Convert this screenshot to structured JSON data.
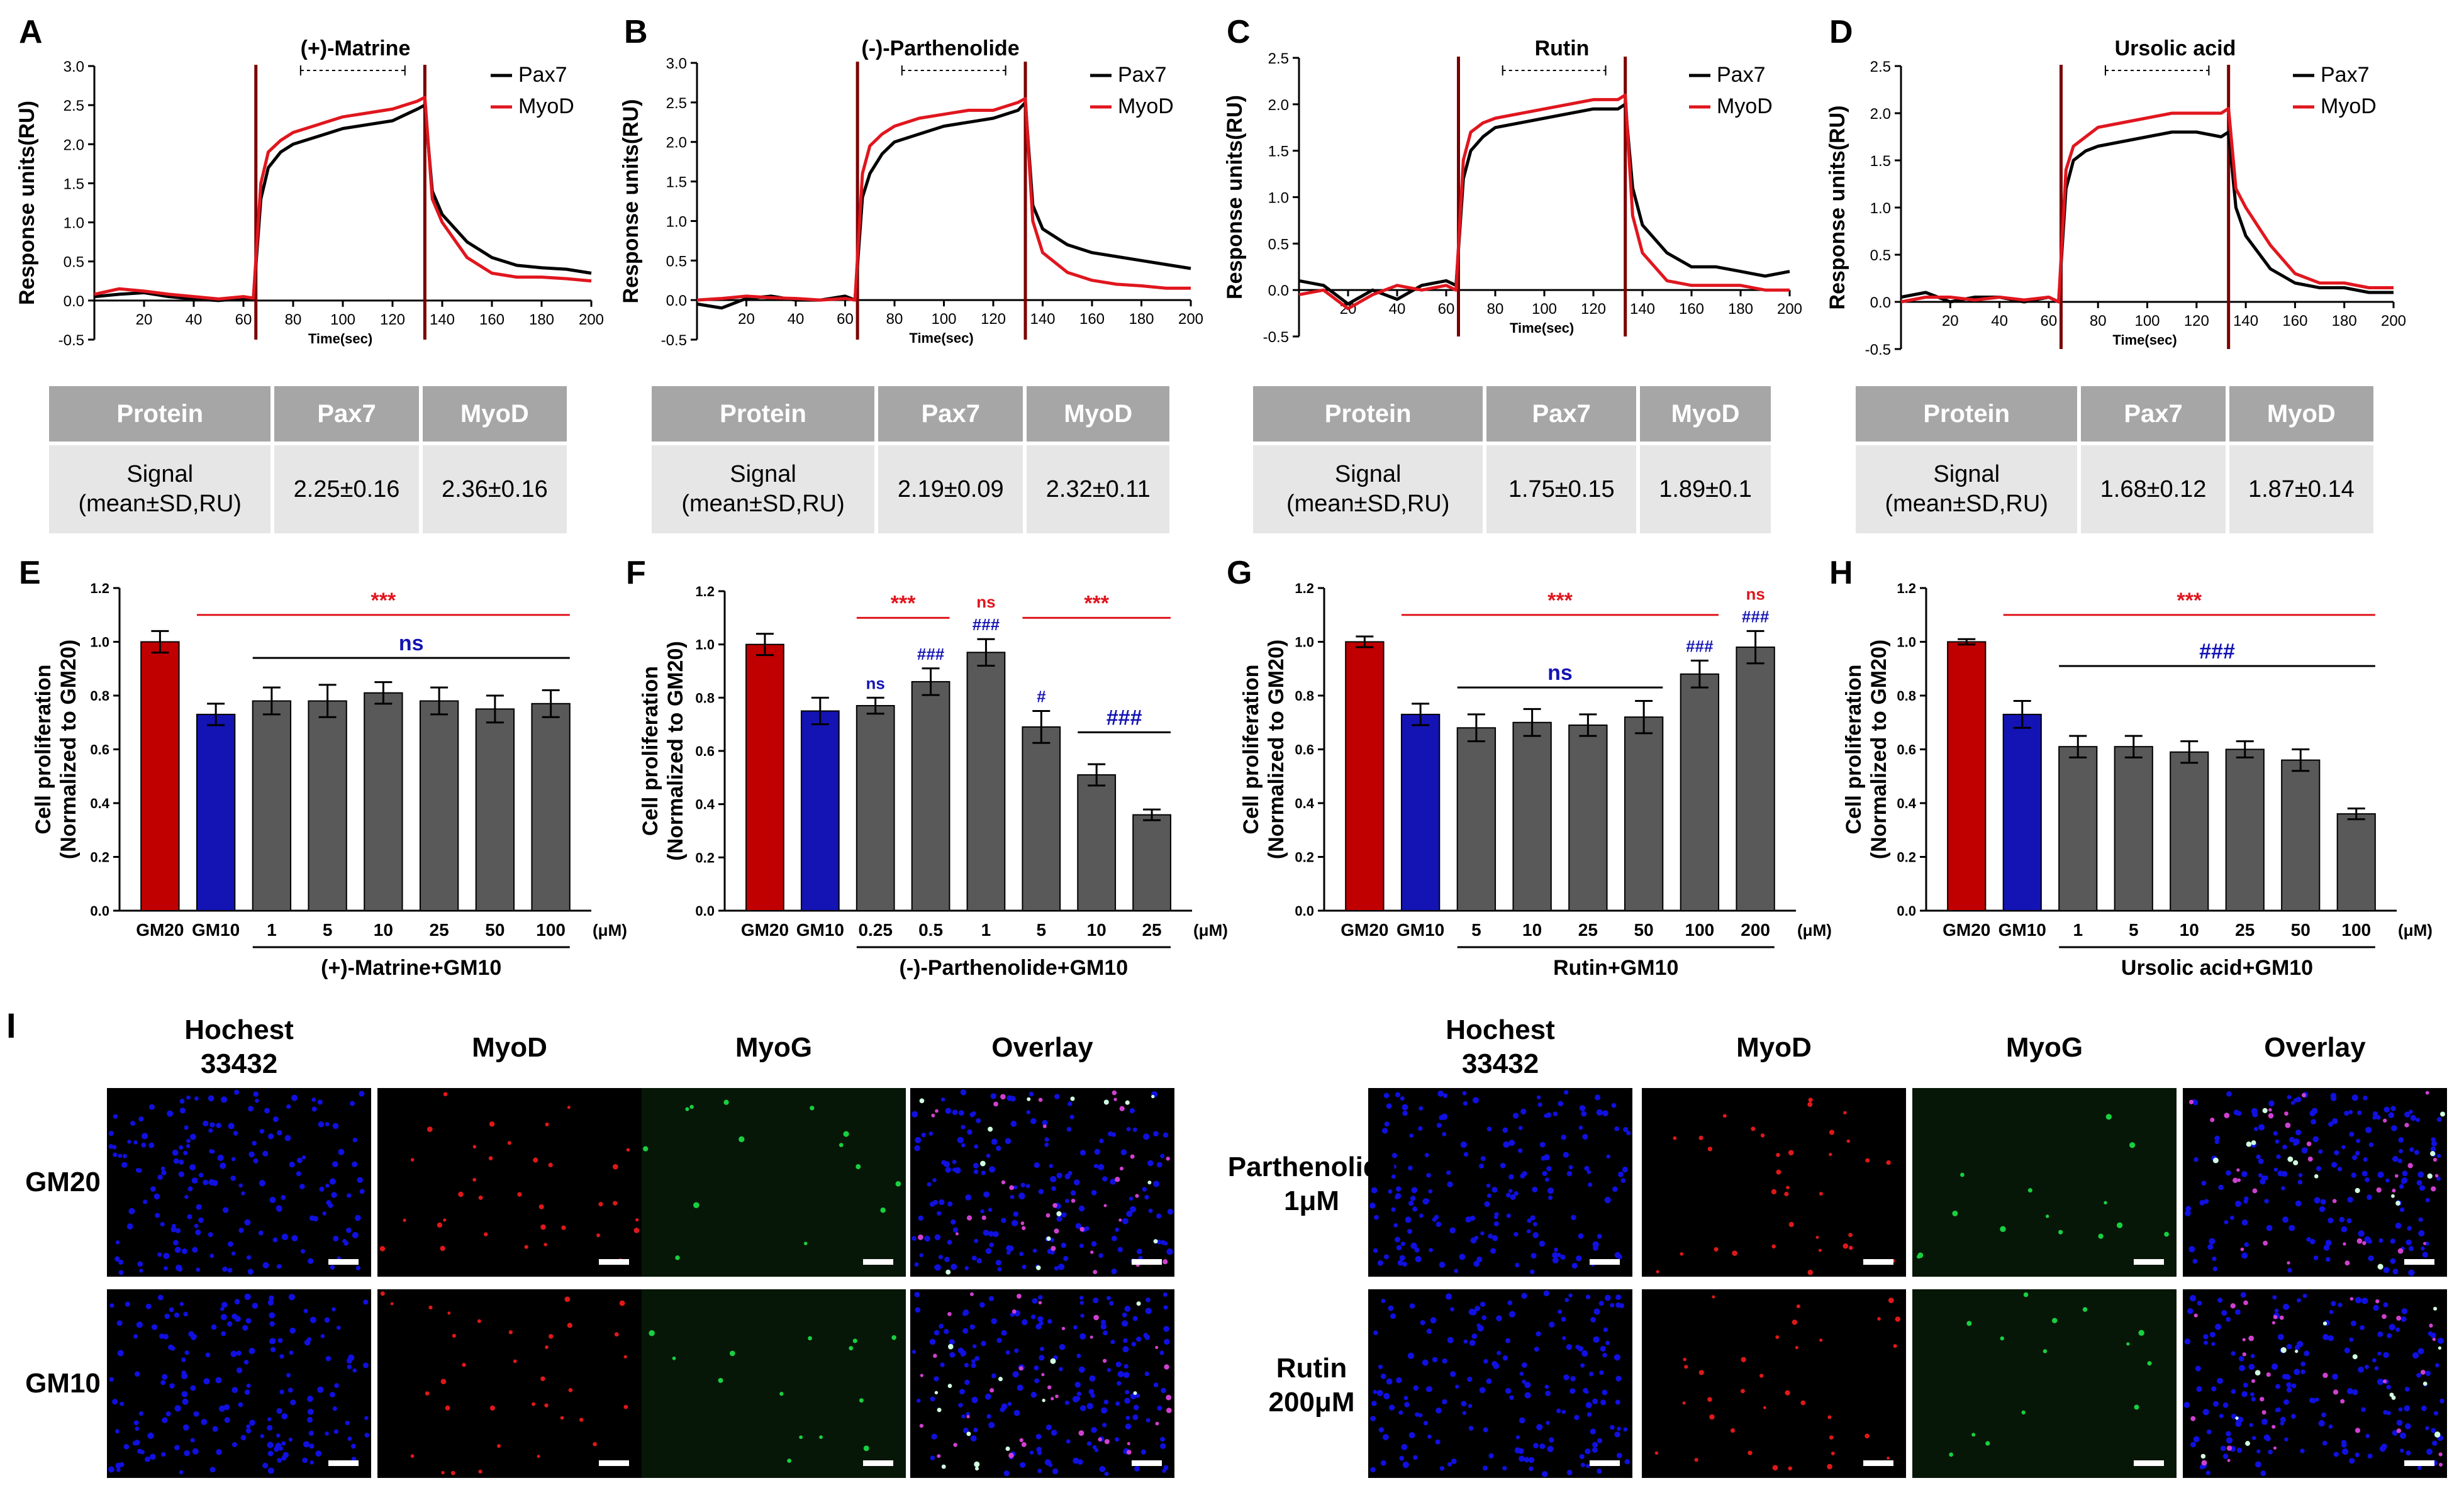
{
  "colors": {
    "pax7": "#000000",
    "myod": "#e0161e",
    "gm20": "#c00000",
    "gm10": "#1414b4",
    "treat": "#595959",
    "sig_red": "#e0161e",
    "sig_blue": "#1414b4",
    "inject": "#7a0000",
    "hoechst": "#1010e0",
    "myod_stain": "#e01818",
    "myog_stain": "#18d040"
  },
  "sensorgram_common": {
    "ylabel": "Response units(RU)",
    "xlabel": "Time(sec)",
    "legend": [
      "Pax7",
      "MyoD"
    ],
    "xticks": [
      20,
      40,
      60,
      80,
      100,
      120,
      140,
      160,
      180,
      200
    ]
  },
  "table_common": {
    "headers": [
      "Protein",
      "Pax7",
      "MyoD"
    ],
    "row_label_1": "Signal",
    "row_label_2": "(mean±SD,RU)"
  },
  "bars_common": {
    "ylabel1": "Cell proliferation",
    "ylabel2": "(Normalized to GM20)",
    "yticks": [
      "0.0",
      "0.2",
      "0.4",
      "0.6",
      "0.8",
      "1.0",
      "1.2"
    ],
    "unit": "(μM)"
  },
  "chart_data": [
    {
      "panel": "A",
      "type": "line",
      "title": "(+)-Matrine",
      "xlim": [
        0,
        200
      ],
      "ylim": [
        -0.5,
        3.0
      ],
      "yticks": [
        "-0.5",
        "0.0",
        "0.5",
        "1.0",
        "1.5",
        "2.0",
        "2.5",
        "3.0"
      ],
      "injection_start": 65,
      "injection_end": 133,
      "series": [
        {
          "name": "Pax7",
          "x": [
            0,
            10,
            20,
            30,
            40,
            50,
            60,
            64,
            67,
            70,
            75,
            80,
            90,
            100,
            110,
            120,
            130,
            133,
            136,
            140,
            150,
            160,
            170,
            180,
            190,
            200
          ],
          "y": [
            0.05,
            0.08,
            0.1,
            0.05,
            0.02,
            0.0,
            0.03,
            0.02,
            1.3,
            1.7,
            1.9,
            2.0,
            2.1,
            2.2,
            2.25,
            2.3,
            2.45,
            2.5,
            1.4,
            1.1,
            0.75,
            0.55,
            0.45,
            0.42,
            0.4,
            0.35
          ]
        },
        {
          "name": "MyoD",
          "x": [
            0,
            10,
            20,
            30,
            40,
            50,
            60,
            64,
            67,
            70,
            75,
            80,
            90,
            100,
            110,
            120,
            130,
            133,
            136,
            140,
            150,
            160,
            170,
            180,
            190,
            200
          ],
          "y": [
            0.08,
            0.15,
            0.12,
            0.08,
            0.05,
            0.02,
            0.05,
            0.03,
            1.5,
            1.9,
            2.05,
            2.15,
            2.25,
            2.35,
            2.4,
            2.45,
            2.55,
            2.6,
            1.3,
            1.0,
            0.55,
            0.35,
            0.3,
            0.3,
            0.28,
            0.25
          ]
        }
      ],
      "table": {
        "pax7": "2.25±0.16",
        "myod": "2.36±0.16"
      }
    },
    {
      "panel": "B",
      "type": "line",
      "title": "(-)-Parthenolide",
      "xlim": [
        0,
        200
      ],
      "ylim": [
        -0.5,
        3.0
      ],
      "yticks": [
        "-0.5",
        "0.0",
        "0.5",
        "1.0",
        "1.5",
        "2.0",
        "2.5",
        "3.0"
      ],
      "injection_start": 65,
      "injection_end": 133,
      "series": [
        {
          "name": "Pax7",
          "x": [
            0,
            10,
            20,
            30,
            40,
            50,
            60,
            64,
            67,
            70,
            75,
            80,
            90,
            100,
            110,
            120,
            130,
            133,
            136,
            140,
            150,
            160,
            170,
            180,
            190,
            200
          ],
          "y": [
            -0.05,
            -0.1,
            0.02,
            0.05,
            0.0,
            0.0,
            0.05,
            0.0,
            1.3,
            1.6,
            1.85,
            2.0,
            2.1,
            2.2,
            2.25,
            2.3,
            2.4,
            2.5,
            1.2,
            0.9,
            0.7,
            0.6,
            0.55,
            0.5,
            0.45,
            0.4
          ]
        },
        {
          "name": "MyoD",
          "x": [
            0,
            10,
            20,
            30,
            40,
            50,
            60,
            64,
            67,
            70,
            75,
            80,
            90,
            100,
            110,
            120,
            130,
            133,
            136,
            140,
            150,
            160,
            170,
            180,
            190,
            200
          ],
          "y": [
            0.0,
            0.02,
            0.05,
            0.03,
            0.02,
            0.0,
            0.02,
            0.0,
            1.6,
            1.95,
            2.1,
            2.2,
            2.3,
            2.35,
            2.4,
            2.4,
            2.5,
            2.55,
            1.0,
            0.6,
            0.35,
            0.25,
            0.2,
            0.18,
            0.15,
            0.15
          ]
        }
      ],
      "table": {
        "pax7": "2.19±0.09",
        "myod": "2.32±0.11"
      }
    },
    {
      "panel": "C",
      "type": "line",
      "title": "Rutin",
      "xlim": [
        0,
        200
      ],
      "ylim": [
        -0.5,
        2.5
      ],
      "yticks": [
        "-0.5",
        "0.0",
        "0.5",
        "1.0",
        "1.5",
        "2.0",
        "2.5"
      ],
      "injection_start": 65,
      "injection_end": 133,
      "series": [
        {
          "name": "Pax7",
          "x": [
            0,
            10,
            20,
            30,
            40,
            50,
            60,
            64,
            67,
            70,
            75,
            80,
            90,
            100,
            110,
            120,
            130,
            133,
            136,
            140,
            150,
            160,
            170,
            180,
            190,
            200
          ],
          "y": [
            0.1,
            0.05,
            -0.15,
            0.0,
            -0.1,
            0.05,
            0.1,
            0.05,
            1.2,
            1.5,
            1.65,
            1.75,
            1.8,
            1.85,
            1.9,
            1.95,
            1.95,
            2.0,
            1.1,
            0.7,
            0.4,
            0.25,
            0.25,
            0.2,
            0.15,
            0.2
          ]
        },
        {
          "name": "MyoD",
          "x": [
            0,
            10,
            20,
            30,
            40,
            50,
            60,
            64,
            67,
            70,
            75,
            80,
            90,
            100,
            110,
            120,
            130,
            133,
            136,
            140,
            150,
            160,
            170,
            180,
            190,
            200
          ],
          "y": [
            -0.05,
            0.0,
            -0.2,
            -0.05,
            0.05,
            0.0,
            0.05,
            0.0,
            1.4,
            1.7,
            1.8,
            1.85,
            1.9,
            1.95,
            2.0,
            2.05,
            2.05,
            2.1,
            0.8,
            0.4,
            0.1,
            0.05,
            0.05,
            0.05,
            0.0,
            0.0
          ]
        }
      ],
      "table": {
        "pax7": "1.75±0.15",
        "myod": "1.89±0.1"
      }
    },
    {
      "panel": "D",
      "type": "line",
      "title": "Ursolic acid",
      "xlim": [
        0,
        200
      ],
      "ylim": [
        -0.5,
        2.5
      ],
      "yticks": [
        "-0.5",
        "0.0",
        "0.5",
        "1.0",
        "1.5",
        "2.0",
        "2.5"
      ],
      "injection_start": 65,
      "injection_end": 133,
      "series": [
        {
          "name": "Pax7",
          "x": [
            0,
            10,
            20,
            30,
            40,
            50,
            60,
            64,
            67,
            70,
            75,
            80,
            90,
            100,
            110,
            120,
            130,
            133,
            136,
            140,
            150,
            160,
            170,
            180,
            190,
            200
          ],
          "y": [
            0.05,
            0.1,
            0.0,
            0.05,
            0.05,
            0.0,
            0.05,
            0.0,
            1.2,
            1.5,
            1.6,
            1.65,
            1.7,
            1.75,
            1.8,
            1.8,
            1.75,
            1.8,
            1.0,
            0.7,
            0.35,
            0.2,
            0.15,
            0.15,
            0.1,
            0.1
          ]
        },
        {
          "name": "MyoD",
          "x": [
            0,
            10,
            20,
            30,
            40,
            50,
            60,
            64,
            67,
            70,
            75,
            80,
            90,
            100,
            110,
            120,
            130,
            133,
            136,
            140,
            150,
            160,
            170,
            180,
            190,
            200
          ],
          "y": [
            0.0,
            0.05,
            0.05,
            0.02,
            0.05,
            0.02,
            0.05,
            0.0,
            1.4,
            1.65,
            1.75,
            1.85,
            1.9,
            1.95,
            2.0,
            2.0,
            2.0,
            2.05,
            1.2,
            1.0,
            0.6,
            0.3,
            0.2,
            0.2,
            0.15,
            0.15
          ]
        }
      ],
      "table": {
        "pax7": "1.68±0.12",
        "myod": "1.87±0.14"
      }
    },
    {
      "panel": "E",
      "type": "bar",
      "ylim": [
        0,
        1.2
      ],
      "categories": [
        "GM20",
        "GM10",
        "1",
        "5",
        "10",
        "25",
        "50",
        "100"
      ],
      "values": [
        1.0,
        0.73,
        0.78,
        0.78,
        0.81,
        0.78,
        0.75,
        0.77
      ],
      "errors": [
        0.04,
        0.04,
        0.05,
        0.06,
        0.04,
        0.05,
        0.05,
        0.05
      ],
      "group_label": "(+)-Matrine+GM10",
      "bar_marks": [
        "",
        "",
        "",
        "",
        "",
        "",
        "",
        ""
      ],
      "brackets": [
        {
          "text": "***",
          "color": "red",
          "from": 1,
          "to": 7,
          "y": 1.1
        },
        {
          "text": "ns",
          "color": "blue",
          "from": 2,
          "to": 7,
          "y": 0.94
        }
      ]
    },
    {
      "panel": "F",
      "type": "bar",
      "ylim": [
        0,
        1.2
      ],
      "categories": [
        "GM20",
        "GM10",
        "0.25",
        "0.5",
        "1",
        "5",
        "10",
        "25"
      ],
      "values": [
        1.0,
        0.75,
        0.77,
        0.86,
        0.97,
        0.69,
        0.51,
        0.36
      ],
      "errors": [
        0.04,
        0.05,
        0.03,
        0.05,
        0.05,
        0.06,
        0.04,
        0.02
      ],
      "group_label": "(-)-Parthenolide+GM10",
      "bar_marks": [
        "",
        "",
        "ns",
        "###",
        "###",
        "#",
        "",
        ""
      ],
      "top_marks": [
        {
          "bar": 4,
          "text": "ns",
          "color": "red"
        }
      ],
      "brackets": [
        {
          "text": "***",
          "color": "red",
          "from": 2,
          "to": 3,
          "y": 1.1
        },
        {
          "text": "***",
          "color": "red",
          "from": 5,
          "to": 7,
          "y": 1.1
        },
        {
          "text": "###",
          "color": "blue",
          "from": 6,
          "to": 7,
          "y": 0.67
        }
      ]
    },
    {
      "panel": "G",
      "type": "bar",
      "ylim": [
        0,
        1.2
      ],
      "categories": [
        "GM20",
        "GM10",
        "5",
        "10",
        "25",
        "50",
        "100",
        "200"
      ],
      "values": [
        1.0,
        0.73,
        0.68,
        0.7,
        0.69,
        0.72,
        0.88,
        0.98
      ],
      "errors": [
        0.02,
        0.04,
        0.05,
        0.05,
        0.04,
        0.06,
        0.05,
        0.06
      ],
      "group_label": "Rutin+GM10",
      "bar_marks": [
        "",
        "",
        "",
        "",
        "",
        "",
        "###",
        "###"
      ],
      "top_marks": [
        {
          "bar": 7,
          "text": "ns",
          "color": "red"
        }
      ],
      "brackets": [
        {
          "text": "***",
          "color": "red",
          "from": 1,
          "to": 6,
          "y": 1.1
        },
        {
          "text": "ns",
          "color": "blue",
          "from": 2,
          "to": 5,
          "y": 0.83
        }
      ]
    },
    {
      "panel": "H",
      "type": "bar",
      "ylim": [
        0,
        1.2
      ],
      "categories": [
        "GM20",
        "GM10",
        "1",
        "5",
        "10",
        "25",
        "50",
        "100"
      ],
      "values": [
        1.0,
        0.73,
        0.61,
        0.61,
        0.59,
        0.6,
        0.56,
        0.36
      ],
      "errors": [
        0.01,
        0.05,
        0.04,
        0.04,
        0.04,
        0.03,
        0.04,
        0.02
      ],
      "group_label": "Ursolic acid+GM10",
      "bar_marks": [
        "",
        "",
        "",
        "",
        "",
        "",
        "",
        ""
      ],
      "brackets": [
        {
          "text": "***",
          "color": "red",
          "from": 1,
          "to": 7,
          "y": 1.1
        },
        {
          "text": "###",
          "color": "blue",
          "from": 2,
          "to": 7,
          "y": 0.91
        }
      ]
    }
  ],
  "panel_i": {
    "label": "I",
    "col_headers": [
      "Hochest",
      "33432",
      "MyoD",
      "MyoG",
      "Overlay"
    ],
    "rows_left": [
      "GM20",
      "GM10"
    ],
    "rows_right": [
      [
        "Parthenolide",
        "1μM"
      ],
      [
        "Rutin",
        "200μM"
      ]
    ],
    "channels": [
      "hoechst",
      "myod",
      "myog",
      "overlay"
    ]
  }
}
